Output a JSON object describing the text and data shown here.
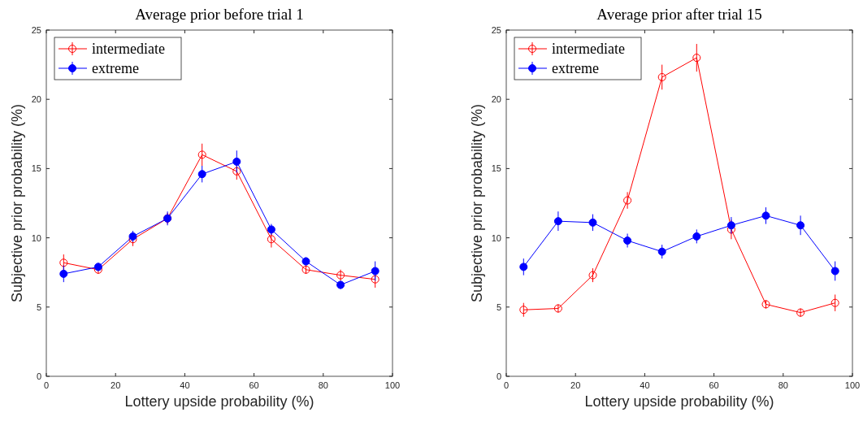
{
  "chart_data": [
    {
      "type": "line",
      "title": "Average prior before trial 1",
      "xlabel": "Lottery upside probability (%)",
      "ylabel": "Subjective prior probability (%)",
      "x": [
        5,
        15,
        25,
        35,
        45,
        55,
        65,
        75,
        85,
        95
      ],
      "xlim": [
        0,
        100
      ],
      "xticks": [
        0,
        20,
        40,
        60,
        80,
        100
      ],
      "ylim": [
        0,
        25
      ],
      "yticks": [
        0,
        5,
        10,
        15,
        20,
        25
      ],
      "grid": false,
      "legend": "top left",
      "marker": "circle",
      "line_style": "solid",
      "series": [
        {
          "name": "intermediate",
          "color": "#ff0000",
          "values": [
            8.2,
            7.7,
            9.9,
            11.4,
            16.0,
            14.8,
            9.9,
            7.7,
            7.3,
            7.0
          ],
          "errors": [
            0.6,
            0.3,
            0.5,
            0.4,
            0.8,
            0.6,
            0.6,
            0.3,
            0.4,
            0.6
          ]
        },
        {
          "name": "extreme",
          "color": "#0000ff",
          "values": [
            7.4,
            7.9,
            10.1,
            11.4,
            14.6,
            15.5,
            10.6,
            8.3,
            6.6,
            7.6
          ],
          "errors": [
            0.6,
            0.3,
            0.4,
            0.5,
            0.6,
            0.8,
            0.4,
            0.3,
            0.3,
            0.7
          ]
        }
      ]
    },
    {
      "type": "line",
      "title": "Average prior after trial 15",
      "xlabel": "Lottery upside probability (%)",
      "ylabel": "Subjective prior probability (%)",
      "x": [
        5,
        15,
        25,
        35,
        45,
        55,
        65,
        75,
        85,
        95
      ],
      "xlim": [
        0,
        100
      ],
      "xticks": [
        0,
        20,
        40,
        60,
        80,
        100
      ],
      "ylim": [
        0,
        25
      ],
      "yticks": [
        0,
        5,
        10,
        15,
        20,
        25
      ],
      "grid": false,
      "legend": "top left",
      "marker": "circle",
      "line_style": "solid",
      "series": [
        {
          "name": "intermediate",
          "color": "#ff0000",
          "values": [
            4.8,
            4.9,
            7.3,
            12.7,
            21.6,
            23.0,
            10.6,
            5.2,
            4.6,
            5.3
          ],
          "errors": [
            0.5,
            0.3,
            0.5,
            0.6,
            0.9,
            1.0,
            0.7,
            0.3,
            0.3,
            0.6
          ]
        },
        {
          "name": "extreme",
          "color": "#0000ff",
          "values": [
            7.9,
            11.2,
            11.1,
            9.8,
            9.0,
            10.1,
            10.9,
            11.6,
            10.9,
            7.6
          ],
          "errors": [
            0.6,
            0.7,
            0.6,
            0.5,
            0.5,
            0.5,
            0.6,
            0.6,
            0.7,
            0.7
          ]
        }
      ]
    }
  ]
}
